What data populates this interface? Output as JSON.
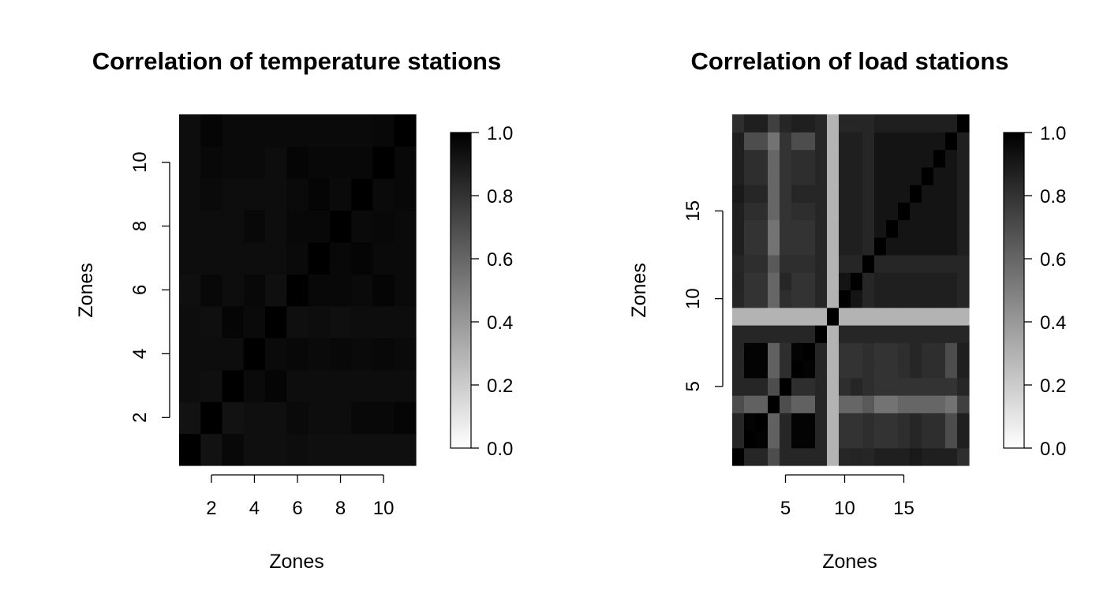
{
  "chart_data": [
    {
      "type": "heatmap",
      "title": "Correlation of temperature stations",
      "xlabel": "Zones",
      "ylabel": "Zones",
      "n": 11,
      "xticks": [
        2,
        4,
        6,
        8,
        10
      ],
      "yticks": [
        2,
        4,
        6,
        8,
        10
      ],
      "colorbar": {
        "min": 0.0,
        "max": 1.0,
        "ticks": [
          "0.0",
          "0.2",
          "0.4",
          "0.6",
          "0.8",
          "1.0"
        ],
        "low_color": "#ffffff",
        "high_color": "#000000"
      },
      "values": [
        [
          1.0,
          0.93,
          0.97,
          0.94,
          0.94,
          0.95,
          0.94,
          0.94,
          0.94,
          0.94,
          0.94
        ],
        [
          0.93,
          1.0,
          0.93,
          0.94,
          0.94,
          0.96,
          0.95,
          0.95,
          0.97,
          0.97,
          0.98
        ],
        [
          0.95,
          0.94,
          1.0,
          0.96,
          0.98,
          0.95,
          0.95,
          0.95,
          0.95,
          0.95,
          0.95
        ],
        [
          0.95,
          0.95,
          0.95,
          1.0,
          0.96,
          0.97,
          0.96,
          0.97,
          0.96,
          0.97,
          0.96
        ],
        [
          0.95,
          0.94,
          0.98,
          0.96,
          1.0,
          0.94,
          0.95,
          0.94,
          0.95,
          0.95,
          0.95
        ],
        [
          0.94,
          0.97,
          0.95,
          0.97,
          0.94,
          1.0,
          0.97,
          0.97,
          0.96,
          0.98,
          0.96
        ],
        [
          0.95,
          0.95,
          0.95,
          0.95,
          0.95,
          0.96,
          1.0,
          0.97,
          0.98,
          0.96,
          0.96
        ],
        [
          0.95,
          0.95,
          0.95,
          0.97,
          0.95,
          0.97,
          0.97,
          1.0,
          0.96,
          0.97,
          0.96
        ],
        [
          0.95,
          0.96,
          0.95,
          0.95,
          0.95,
          0.96,
          0.98,
          0.96,
          1.0,
          0.96,
          0.97
        ],
        [
          0.95,
          0.97,
          0.96,
          0.96,
          0.95,
          0.98,
          0.97,
          0.97,
          0.97,
          1.0,
          0.97
        ],
        [
          0.95,
          0.98,
          0.96,
          0.96,
          0.96,
          0.96,
          0.96,
          0.96,
          0.96,
          0.97,
          1.0
        ]
      ]
    },
    {
      "type": "heatmap",
      "title": "Correlation of load stations",
      "xlabel": "Zones",
      "ylabel": "Zones",
      "n": 20,
      "xticks": [
        5,
        10,
        15
      ],
      "yticks": [
        5,
        10,
        15
      ],
      "colorbar": {
        "min": 0.0,
        "max": 1.0,
        "ticks": [
          "0.0",
          "0.2",
          "0.4",
          "0.6",
          "0.8",
          "1.0"
        ],
        "low_color": "#ffffff",
        "high_color": "#000000"
      },
      "values": [
        [
          1.0,
          0.85,
          0.85,
          0.7,
          0.85,
          0.85,
          0.85,
          0.85,
          0.3,
          0.85,
          0.86,
          0.85,
          0.88,
          0.88,
          0.88,
          0.9,
          0.88,
          0.88,
          0.88,
          0.82
        ],
        [
          0.85,
          1.0,
          0.99,
          0.62,
          0.85,
          0.99,
          0.99,
          0.85,
          0.3,
          0.8,
          0.8,
          0.82,
          0.8,
          0.8,
          0.82,
          0.85,
          0.82,
          0.82,
          0.7,
          0.88
        ],
        [
          0.85,
          0.99,
          1.0,
          0.62,
          0.85,
          0.99,
          0.99,
          0.85,
          0.3,
          0.8,
          0.8,
          0.82,
          0.8,
          0.8,
          0.82,
          0.85,
          0.82,
          0.82,
          0.7,
          0.88
        ],
        [
          0.7,
          0.62,
          0.62,
          1.0,
          0.7,
          0.62,
          0.62,
          0.85,
          0.3,
          0.6,
          0.6,
          0.65,
          0.55,
          0.55,
          0.6,
          0.6,
          0.6,
          0.6,
          0.55,
          0.75
        ],
        [
          0.85,
          0.85,
          0.85,
          0.7,
          1.0,
          0.82,
          0.82,
          0.85,
          0.3,
          0.82,
          0.85,
          0.82,
          0.8,
          0.8,
          0.8,
          0.8,
          0.8,
          0.8,
          0.8,
          0.85
        ],
        [
          0.85,
          0.99,
          0.99,
          0.62,
          0.82,
          1.0,
          0.99,
          0.85,
          0.3,
          0.8,
          0.8,
          0.82,
          0.8,
          0.8,
          0.82,
          0.85,
          0.82,
          0.82,
          0.7,
          0.88
        ],
        [
          0.85,
          0.99,
          0.99,
          0.62,
          0.82,
          0.99,
          1.0,
          0.85,
          0.3,
          0.8,
          0.8,
          0.82,
          0.8,
          0.8,
          0.82,
          0.85,
          0.82,
          0.82,
          0.7,
          0.88
        ],
        [
          0.85,
          0.85,
          0.85,
          0.85,
          0.85,
          0.85,
          0.85,
          1.0,
          0.3,
          0.85,
          0.85,
          0.85,
          0.85,
          0.85,
          0.85,
          0.85,
          0.85,
          0.85,
          0.85,
          0.85
        ],
        [
          0.3,
          0.3,
          0.3,
          0.3,
          0.3,
          0.3,
          0.3,
          0.3,
          1.0,
          0.3,
          0.3,
          0.3,
          0.3,
          0.3,
          0.3,
          0.3,
          0.3,
          0.3,
          0.3,
          0.3
        ],
        [
          0.85,
          0.8,
          0.8,
          0.6,
          0.82,
          0.8,
          0.8,
          0.85,
          0.3,
          1.0,
          0.92,
          0.85,
          0.88,
          0.88,
          0.88,
          0.88,
          0.88,
          0.88,
          0.88,
          0.85
        ],
        [
          0.86,
          0.8,
          0.8,
          0.6,
          0.85,
          0.8,
          0.8,
          0.85,
          0.3,
          0.92,
          1.0,
          0.85,
          0.88,
          0.88,
          0.88,
          0.88,
          0.88,
          0.88,
          0.88,
          0.85
        ],
        [
          0.85,
          0.82,
          0.82,
          0.65,
          0.82,
          0.82,
          0.82,
          0.85,
          0.3,
          0.85,
          0.85,
          1.0,
          0.85,
          0.85,
          0.85,
          0.85,
          0.85,
          0.85,
          0.85,
          0.85
        ],
        [
          0.88,
          0.8,
          0.8,
          0.55,
          0.8,
          0.8,
          0.8,
          0.85,
          0.3,
          0.88,
          0.88,
          0.85,
          1.0,
          0.92,
          0.92,
          0.92,
          0.92,
          0.92,
          0.92,
          0.88
        ],
        [
          0.88,
          0.8,
          0.8,
          0.55,
          0.8,
          0.8,
          0.8,
          0.85,
          0.3,
          0.88,
          0.88,
          0.85,
          0.92,
          1.0,
          0.92,
          0.92,
          0.92,
          0.92,
          0.92,
          0.88
        ],
        [
          0.88,
          0.82,
          0.82,
          0.6,
          0.8,
          0.82,
          0.82,
          0.85,
          0.3,
          0.88,
          0.88,
          0.85,
          0.92,
          0.92,
          1.0,
          0.92,
          0.92,
          0.92,
          0.92,
          0.88
        ],
        [
          0.9,
          0.85,
          0.85,
          0.6,
          0.8,
          0.85,
          0.85,
          0.85,
          0.3,
          0.88,
          0.88,
          0.85,
          0.92,
          0.92,
          0.92,
          1.0,
          0.92,
          0.92,
          0.92,
          0.88
        ],
        [
          0.88,
          0.82,
          0.82,
          0.6,
          0.8,
          0.82,
          0.82,
          0.85,
          0.3,
          0.88,
          0.88,
          0.85,
          0.92,
          0.92,
          0.92,
          0.92,
          1.0,
          0.92,
          0.92,
          0.88
        ],
        [
          0.88,
          0.82,
          0.82,
          0.6,
          0.8,
          0.82,
          0.82,
          0.85,
          0.3,
          0.88,
          0.88,
          0.85,
          0.92,
          0.92,
          0.92,
          0.92,
          0.92,
          1.0,
          0.92,
          0.88
        ],
        [
          0.88,
          0.7,
          0.7,
          0.55,
          0.8,
          0.7,
          0.7,
          0.85,
          0.3,
          0.88,
          0.88,
          0.85,
          0.92,
          0.92,
          0.92,
          0.92,
          0.92,
          0.92,
          1.0,
          0.88
        ],
        [
          0.82,
          0.88,
          0.88,
          0.75,
          0.85,
          0.88,
          0.88,
          0.85,
          0.3,
          0.85,
          0.85,
          0.85,
          0.88,
          0.88,
          0.88,
          0.88,
          0.88,
          0.88,
          0.88,
          1.0
        ]
      ]
    }
  ]
}
